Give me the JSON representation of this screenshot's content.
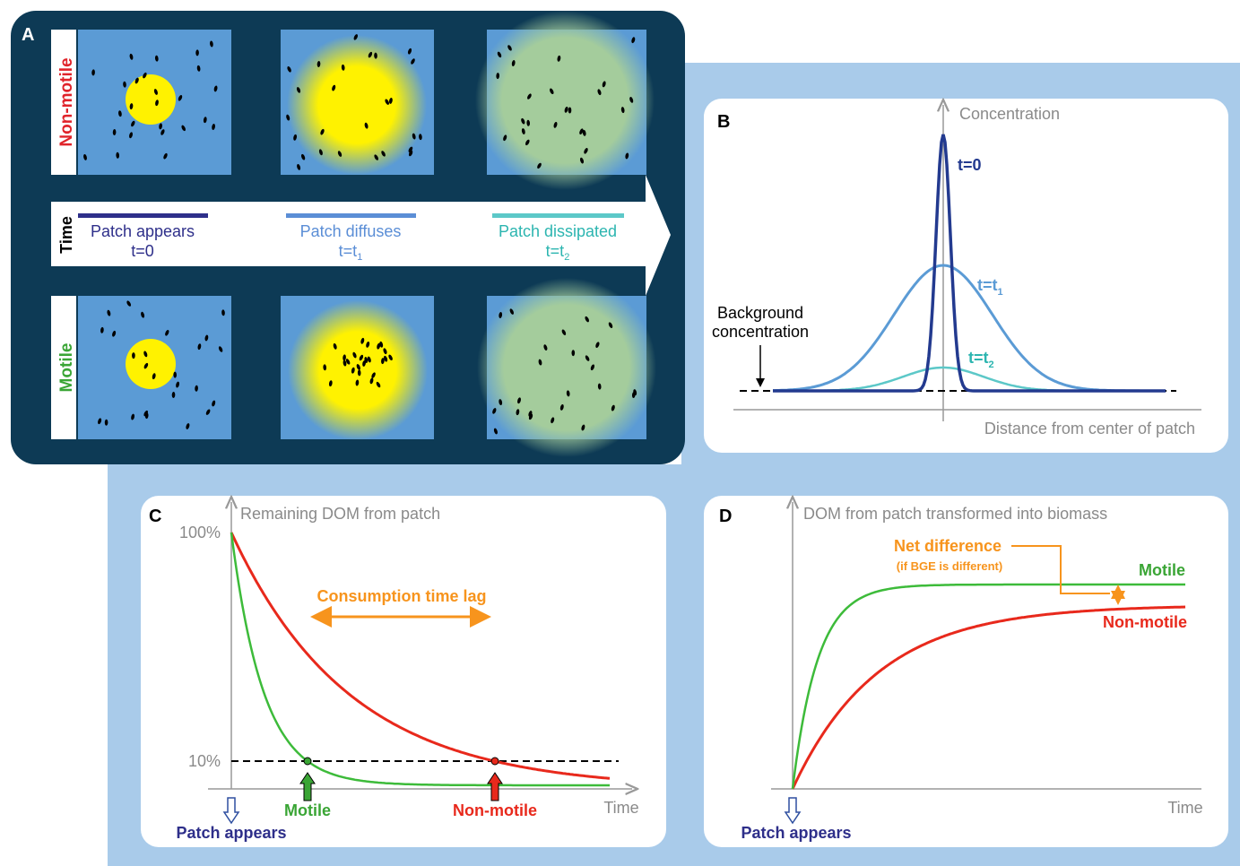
{
  "panel_a": {
    "label": "A",
    "rows": [
      "Non-motile",
      "Motile"
    ],
    "time_label": "Time",
    "stages": [
      {
        "name": "Patch appears",
        "time": "t=0",
        "sub": ""
      },
      {
        "name": "Patch diffuses",
        "time": "t=t",
        "sub": "1"
      },
      {
        "name": "Patch dissipated",
        "time": "t=t",
        "sub": "2"
      }
    ]
  },
  "panel_b": {
    "label": "B",
    "y_axis": "Concentration",
    "x_axis": "Distance from center of patch",
    "annotation": [
      "Background",
      "concentration"
    ],
    "curves": [
      {
        "time": "t=0",
        "sub": ""
      },
      {
        "time": "t=t",
        "sub": "1"
      },
      {
        "time": "t=t",
        "sub": "2"
      }
    ]
  },
  "panel_c": {
    "label": "C",
    "y_axis": "Remaining DOM from patch",
    "ticks": [
      "100%",
      "10%"
    ],
    "x_axis": "Time",
    "lag": "Consumption time lag",
    "motile": "Motile",
    "non_motile": "Non-motile",
    "start": "Patch appears"
  },
  "panel_d": {
    "label": "D",
    "y_axis": "DOM from patch transformed into biomass",
    "x_axis": "Time",
    "difference": "Net difference",
    "difference_note": "(if BGE is different)",
    "motile": "Motile",
    "non_motile": "Non-motile",
    "start": "Patch appears"
  }
}
